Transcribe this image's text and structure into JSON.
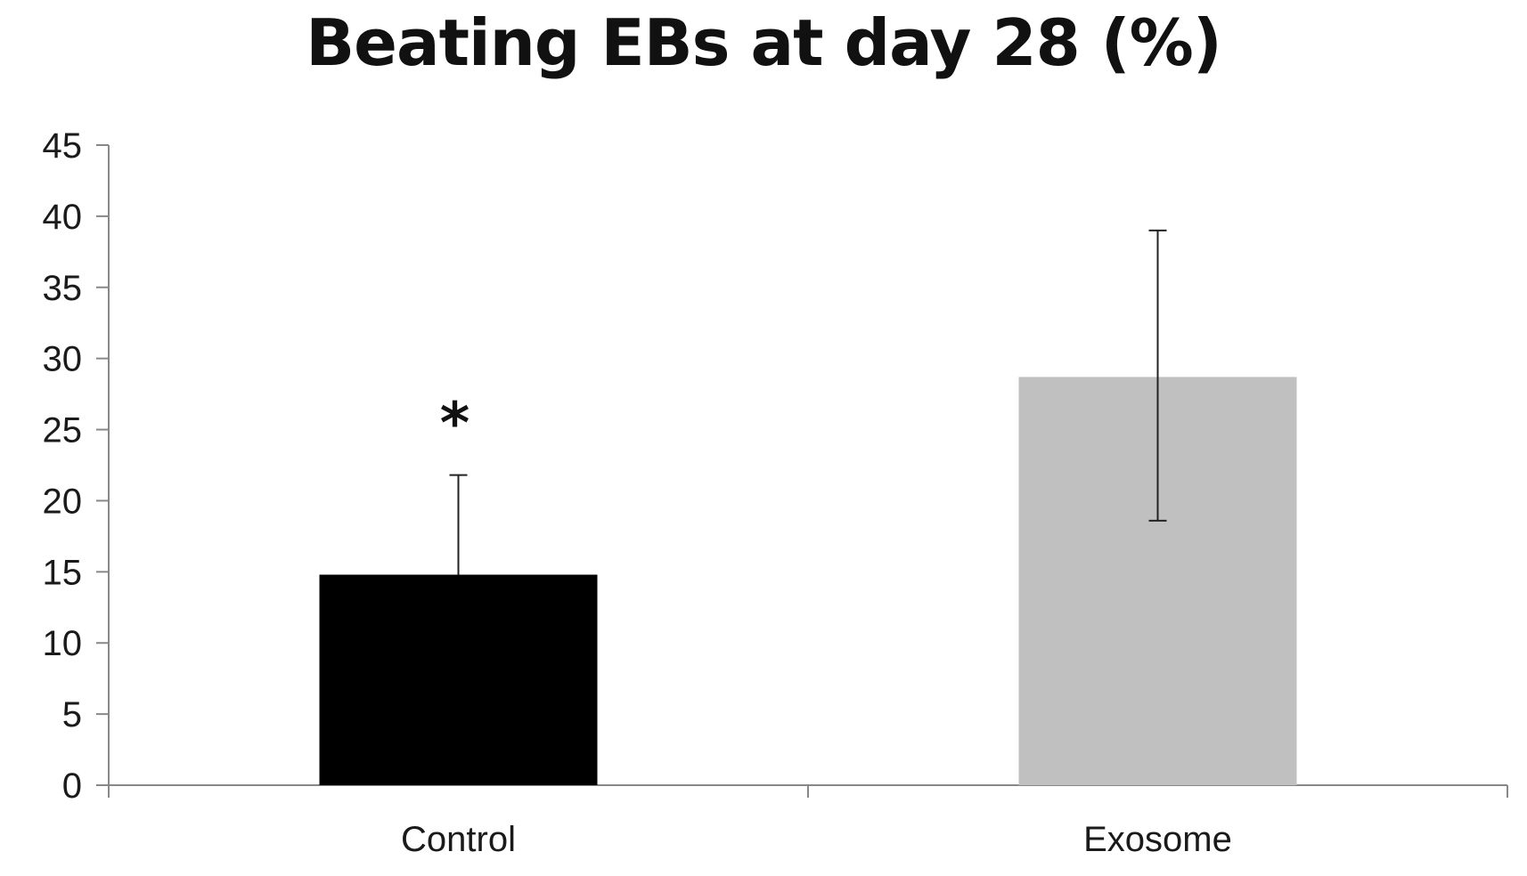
{
  "chart_data": {
    "type": "bar",
    "title": "Beating EBs at day 28 (%)",
    "xlabel": "",
    "ylabel": "",
    "categories": [
      "Control",
      "Exosome"
    ],
    "values": [
      14.8,
      28.7
    ],
    "error_upper": [
      21.8,
      39.0
    ],
    "error_lower": [
      14.8,
      18.6
    ],
    "bar_colors": [
      "#000000",
      "#c0c0c0"
    ],
    "annotations": [
      {
        "category": "Control",
        "text": "*"
      }
    ],
    "ylim": [
      0,
      45
    ],
    "yticks": [
      0,
      5,
      10,
      15,
      20,
      25,
      30,
      35,
      40,
      45
    ],
    "grid": false,
    "legend": "none"
  }
}
